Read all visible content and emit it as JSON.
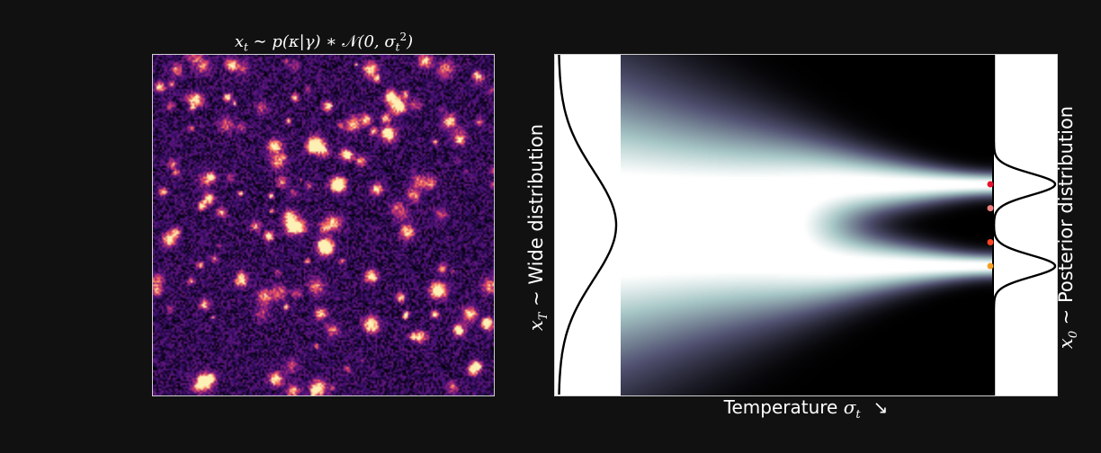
{
  "left_panel": {
    "title": {
      "var": "x",
      "var_sub": "t",
      "sim": " ∼ ",
      "p_text": "p(κ|γ) ∗ ",
      "normal": "𝒩",
      "normal_args": "(0, σ",
      "sigma_sub": "t",
      "sigma_sup": "2",
      "close": ")"
    },
    "image_description_icon": "convergence-map-heatmap",
    "colormap": "magma"
  },
  "right_panel": {
    "left_label": {
      "var": "x",
      "var_sub": "T",
      "sim": " ∼ ",
      "text": "Wide distribution"
    },
    "right_label": {
      "var": "x",
      "var_sub": "0",
      "sim": " ∼ ",
      "text": "Posterior distribution"
    },
    "x_label": {
      "text": "Temperature ",
      "sigma": "σ",
      "sigma_sub": "t",
      "arrow": "↘"
    },
    "colormap": "bone",
    "sample_points": [
      {
        "y_fraction": 0.38,
        "color": "#e8112d"
      },
      {
        "y_fraction": 0.45,
        "color": "#f08080"
      },
      {
        "y_fraction": 0.55,
        "color": "#ff4422"
      },
      {
        "y_fraction": 0.62,
        "color": "#f5a020"
      }
    ]
  }
}
